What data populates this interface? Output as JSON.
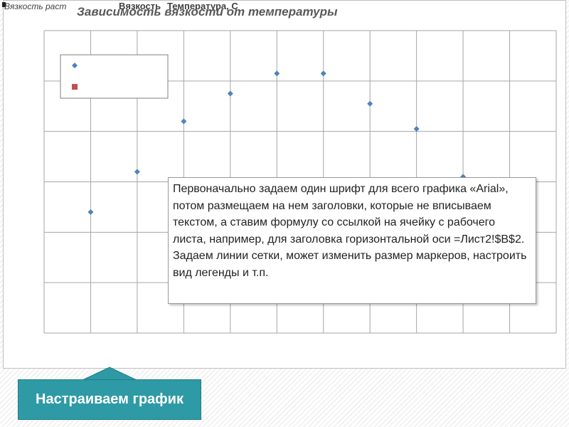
{
  "chart_data": {
    "type": "scatter",
    "title": "Зависимость вязкости от температуры",
    "header_fragments": {
      "left": "Вязкость раст",
      "middle": "Вязкость",
      "right": "Температура, С"
    },
    "series": [
      {
        "marker": "diamond",
        "color": "#4f81bd",
        "x": [
          1,
          2,
          3,
          4,
          5,
          6,
          7,
          8,
          9
        ],
        "y": [
          2.4,
          3.2,
          4.2,
          4.75,
          5.15,
          5.15,
          4.55,
          4.05,
          3.1
        ]
      }
    ],
    "legend": {
      "position": "top-left",
      "markers": [
        {
          "shape": "diamond",
          "color": "#4f81bd"
        },
        {
          "shape": "square",
          "color": "#c0504d"
        }
      ]
    },
    "xlim": [
      0,
      11
    ],
    "ylim": [
      0,
      6
    ],
    "grid": true
  },
  "note": {
    "text": "Первоначально задаем один шрифт для всего графика «Arial», потом размещаем на нем заголовки, которые не вписываем текстом, а ставим формулу со ссылкой на ячейку с рабочего листа, например, для заголовка горизонтальной оси =Лист2!$B$2. Задаем линии сетки, может изменить размер маркеров, настроить вид легенды и т.п."
  },
  "cta": {
    "label": "Настраиваем график"
  },
  "colors": {
    "accent": "#2e9aa6",
    "grid": "#a6a6a6",
    "series": "#4f81bd",
    "legend_square": "#c0504d"
  }
}
